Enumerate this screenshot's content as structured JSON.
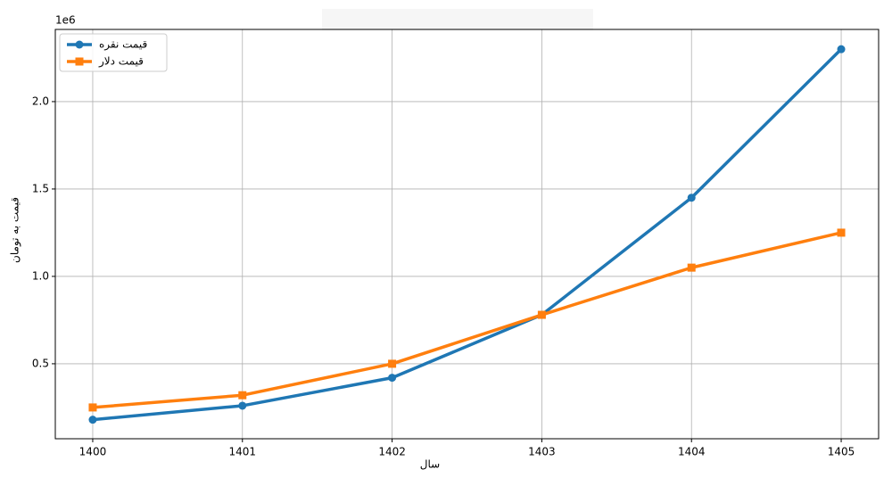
{
  "chart_data": {
    "type": "line",
    "x_label": "سال",
    "y_label": "قیمت به تومان",
    "y_offset_label": "1e6",
    "x": [
      1400,
      1401,
      1402,
      1403,
      1404,
      1405
    ],
    "series": [
      {
        "name": "قیمت نقره",
        "color": "#1f77b4",
        "marker": "circle",
        "values": [
          180000,
          260000,
          420000,
          780000,
          1450000,
          2300000
        ]
      },
      {
        "name": "قیمت دلار",
        "color": "#ff7f0e",
        "marker": "square",
        "values": [
          250000,
          320000,
          500000,
          780000,
          1050000,
          1250000
        ]
      }
    ],
    "xlim": [
      1399.75,
      1405.25
    ],
    "ylim": [
      71000,
      2413000
    ],
    "xticks": [
      1400,
      1401,
      1402,
      1403,
      1404,
      1405
    ],
    "yticks": [
      {
        "value": 500000,
        "label": "0.5"
      },
      {
        "value": 1000000,
        "label": "1.0"
      },
      {
        "value": 1500000,
        "label": "1.5"
      },
      {
        "value": 2000000,
        "label": "2.0"
      }
    ],
    "grid": true,
    "legend": "upper left"
  }
}
